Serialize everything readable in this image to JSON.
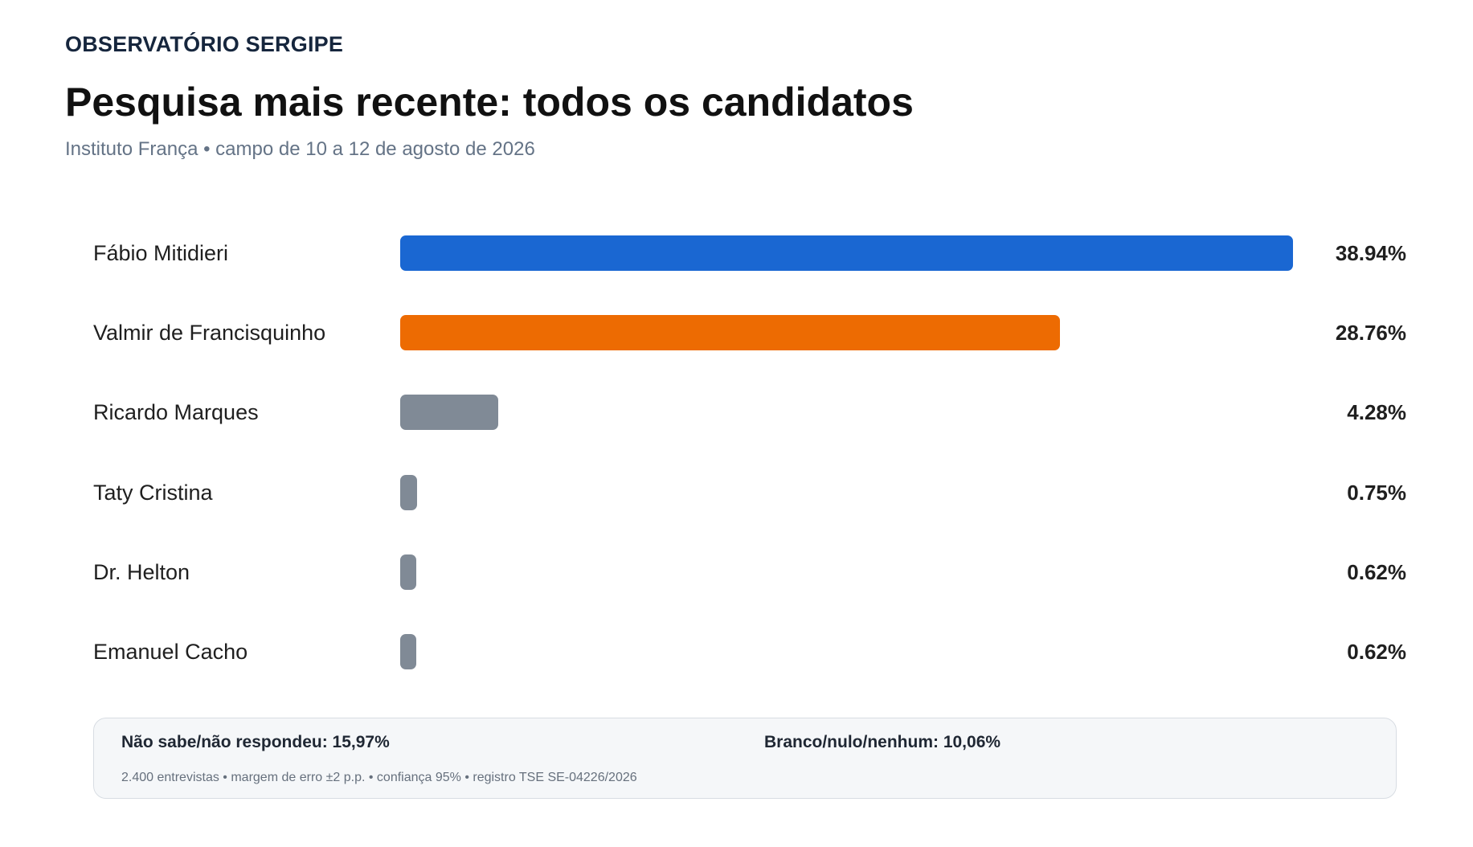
{
  "header": {
    "brand": "OBSERVATÓRIO SERGIPE",
    "title": "Pesquisa mais recente: todos os candidatos",
    "subtitle": "Instituto França • campo de 10 a 12 de agosto de 2026"
  },
  "chart_data": {
    "type": "bar",
    "orientation": "horizontal",
    "title": "Pesquisa mais recente: todos os candidatos",
    "subtitle": "Instituto França • campo de 10 a 12 de agosto de 2026",
    "xlabel": "",
    "ylabel": "",
    "xlim": [
      0,
      38.94
    ],
    "grid": false,
    "legend": "none",
    "categories": [
      "Fábio Mitidieri",
      "Valmir de Francisquinho",
      "Ricardo Marques",
      "Taty Cristina",
      "Dr. Helton",
      "Emanuel Cacho"
    ],
    "values": [
      38.94,
      28.76,
      4.28,
      0.75,
      0.62,
      0.62
    ],
    "value_labels": [
      "38.94%",
      "28.76%",
      "4.28%",
      "0.75%",
      "0.62%",
      "0.62%"
    ],
    "colors": [
      "#1a67d2",
      "#ed6b02",
      "#808a96",
      "#808a96",
      "#808a96",
      "#808a96"
    ]
  },
  "notes": {
    "undecided": "Não sabe/não respondeu: 15,97%",
    "blank": "Branco/nulo/nenhum: 10,06%",
    "meta": "2.400 entrevistas • margem de erro ±2 p.p. • confiança 95% • registro TSE SE-04226/2026"
  }
}
